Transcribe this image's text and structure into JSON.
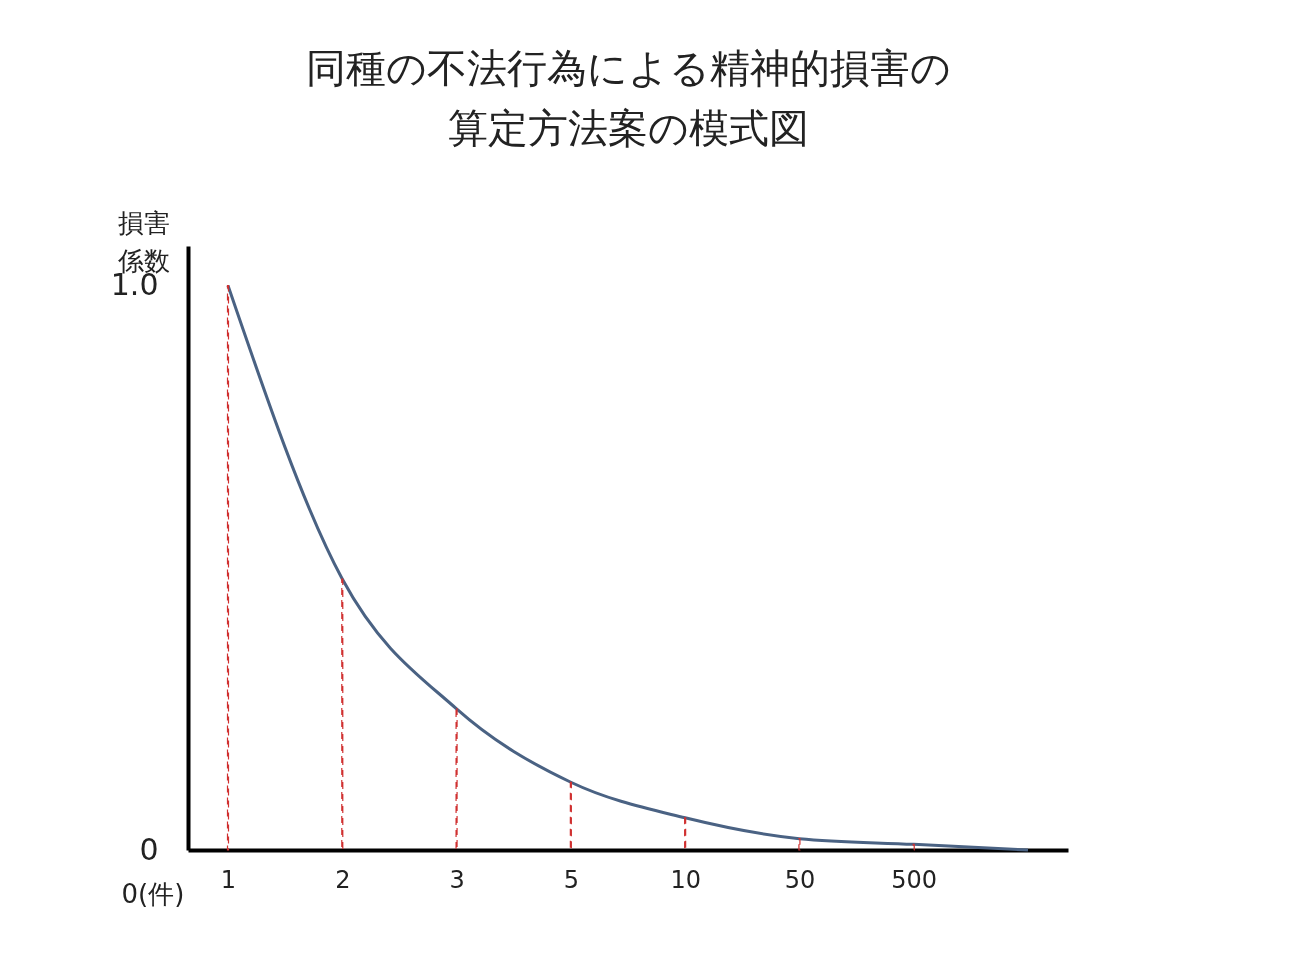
{
  "chart_data": {
    "type": "line",
    "title": "同種の不法行為による精神的損害の算定方法案の模式図",
    "ylabel": "損害係数",
    "categories": [
      "1",
      "2",
      "3",
      "5",
      "10",
      "50",
      "500",
      null
    ],
    "series": [
      {
        "color": "#4a6283",
        "values": [
          1.0,
          0.48,
          0.25,
          0.12,
          0.057,
          0.02,
          0.01,
          0
        ]
      },
      {
        "type": "bar",
        "color": "#d03030",
        "line_style": "dashed",
        "values": [
          1.0,
          0.48,
          0.25,
          0.12,
          0.057,
          0.02,
          0.01,
          null
        ]
      }
    ],
    "ylim": [
      0,
      1.07
    ],
    "yticks": [
      0,
      {
        "value": 1,
        "label": "1.0"
      }
    ],
    "annotations": [
      "0(件)"
    ]
  }
}
